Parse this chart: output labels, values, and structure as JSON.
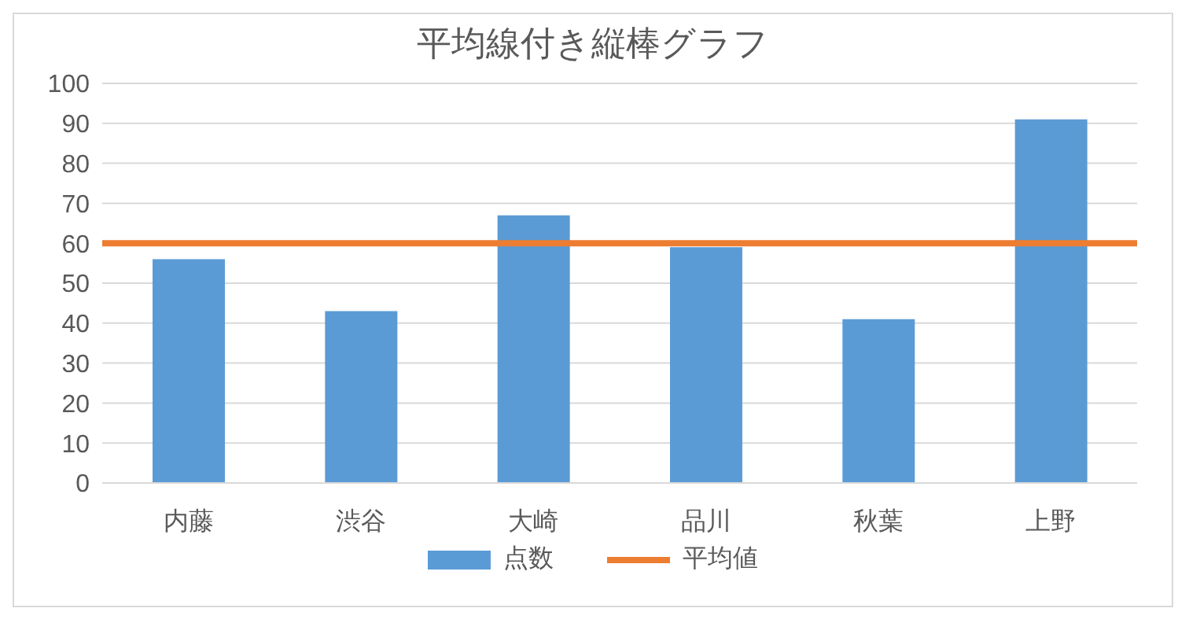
{
  "chart_data": {
    "type": "bar",
    "title": "平均線付き縦棒グラフ",
    "categories": [
      "内藤",
      "渋谷",
      "大崎",
      "品川",
      "秋葉",
      "上野"
    ],
    "series": [
      {
        "name": "点数",
        "color": "#5b9bd5",
        "values": [
          56,
          43,
          67,
          59,
          41,
          91
        ]
      }
    ],
    "ref_lines": [
      {
        "axis": "y",
        "value": 60,
        "label": "平均値",
        "color": "#ed7d31",
        "line_style": "solid"
      }
    ],
    "ylim": [
      0,
      100
    ],
    "yticks": [
      0,
      10,
      20,
      30,
      40,
      50,
      60,
      70,
      80,
      90,
      100
    ],
    "grid": "y",
    "legend": "bottom"
  }
}
